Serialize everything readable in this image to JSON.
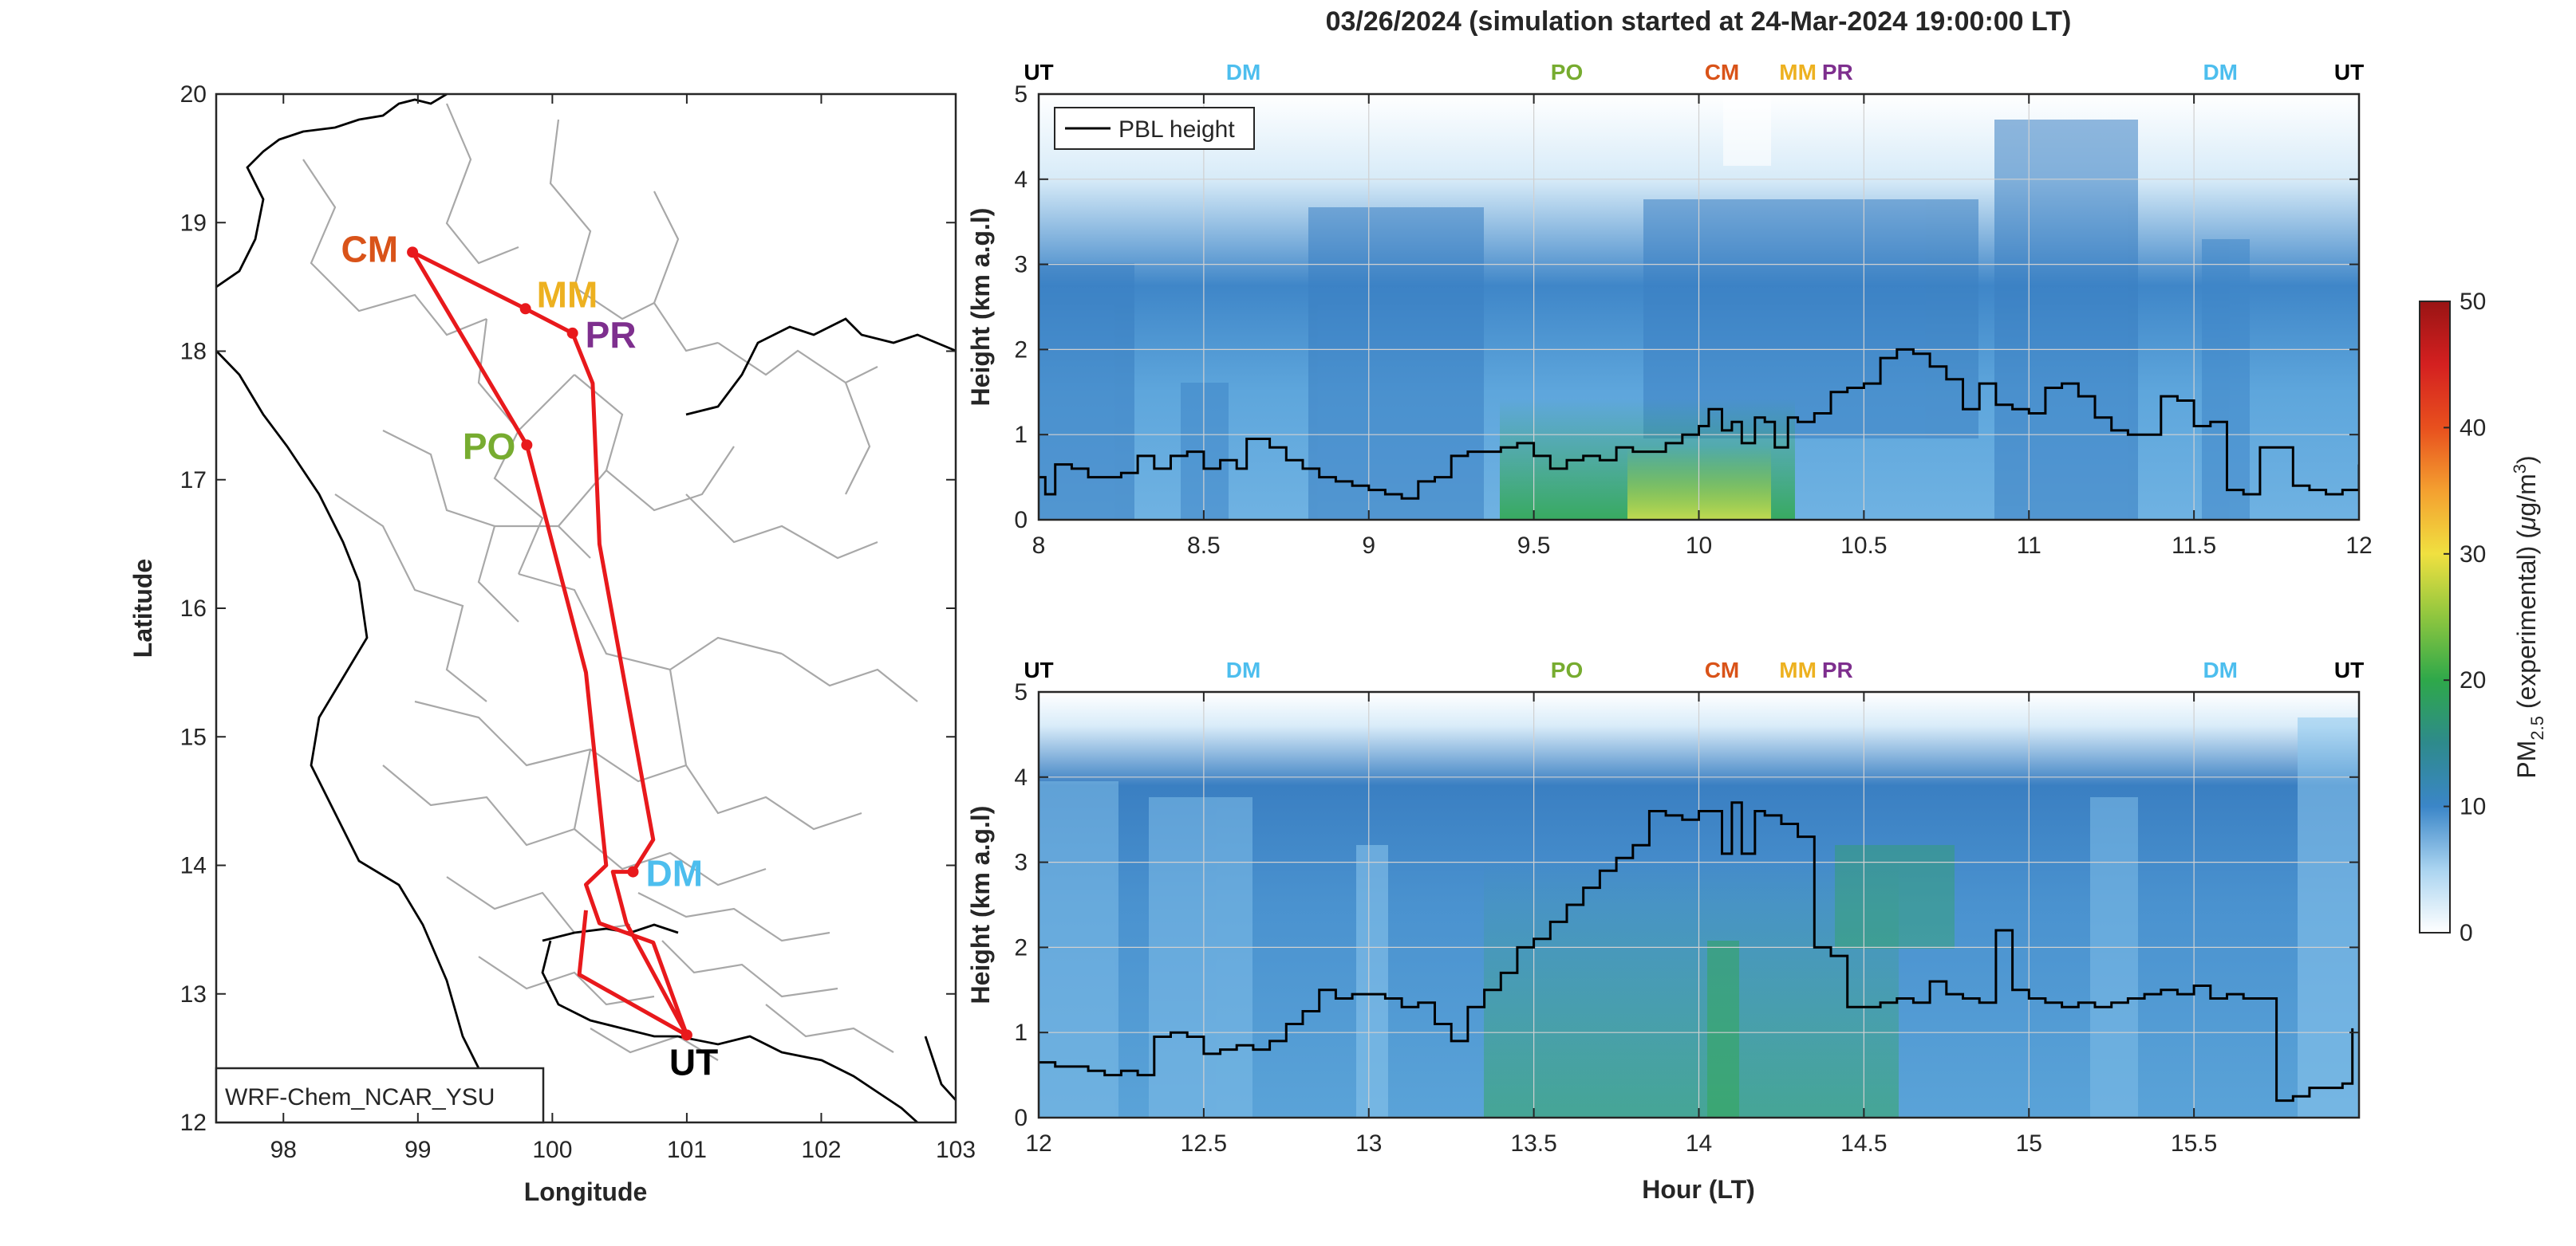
{
  "figure": {
    "title": "03/26/2024 (simulation started at 24-Mar-2024 19:00:00 LT)"
  },
  "colors": {
    "route": "#e8191c",
    "pbl": "#000000",
    "CM": "#d95319",
    "MM": "#edb120",
    "PR": "#7e2f8e",
    "PO": "#77ac30",
    "DM": "#4dbeee",
    "UT": "#000000",
    "boundary": "#9e9e9e",
    "coast": "#000000"
  },
  "map": {
    "xlabel": "Longitude",
    "ylabel": "Latitude",
    "xlim": [
      97.5,
      103
    ],
    "ylim": [
      12,
      20
    ],
    "xticks": [
      "98",
      "99",
      "100",
      "101",
      "102",
      "103"
    ],
    "yticks": [
      "12",
      "13",
      "14",
      "15",
      "16",
      "17",
      "18",
      "19",
      "20"
    ],
    "model_label": "WRF-Chem_NCAR_YSU",
    "stations": [
      {
        "code": "CM",
        "lon": 98.96,
        "lat": 18.77
      },
      {
        "code": "MM",
        "lon": 99.8,
        "lat": 18.33
      },
      {
        "code": "PR",
        "lon": 100.15,
        "lat": 18.14
      },
      {
        "code": "PO",
        "lon": 99.81,
        "lat": 17.27
      },
      {
        "code": "DM",
        "lon": 100.6,
        "lat": 13.95
      },
      {
        "code": "UT",
        "lon": 101.0,
        "lat": 12.68
      }
    ],
    "route_lonlat": [
      [
        101.0,
        12.68
      ],
      [
        100.55,
        13.55
      ],
      [
        100.45,
        13.95
      ],
      [
        100.6,
        13.95
      ],
      [
        100.75,
        14.2
      ],
      [
        100.35,
        16.5
      ],
      [
        100.3,
        17.75
      ],
      [
        100.15,
        18.14
      ],
      [
        99.8,
        18.33
      ],
      [
        98.96,
        18.77
      ],
      [
        99.81,
        17.27
      ],
      [
        100.25,
        15.5
      ],
      [
        100.4,
        14.0
      ],
      [
        100.25,
        13.85
      ],
      [
        100.35,
        13.55
      ],
      [
        100.75,
        13.4
      ],
      [
        101.0,
        12.68
      ],
      [
        100.2,
        13.15
      ],
      [
        100.25,
        13.65
      ]
    ]
  },
  "panel_top": {
    "ylabel": "Height (km a.g.l)",
    "xlim": [
      8,
      12
    ],
    "ylim": [
      0,
      5
    ],
    "xticks": [
      "8",
      "8.5",
      "9",
      "9.5",
      "10",
      "10.5",
      "11",
      "11.5",
      "12"
    ],
    "yticks": [
      "0",
      "1",
      "2",
      "3",
      "4",
      "5"
    ],
    "station_marks": [
      {
        "code": "UT",
        "hour": 8.0
      },
      {
        "code": "DM",
        "hour": 8.62
      },
      {
        "code": "PO",
        "hour": 9.6
      },
      {
        "code": "CM",
        "hour": 10.07
      },
      {
        "code": "MM",
        "hour": 10.3
      },
      {
        "code": "PR",
        "hour": 10.42
      },
      {
        "code": "DM",
        "hour": 11.58
      },
      {
        "code": "UT",
        "hour": 11.97
      }
    ],
    "legend": "PBL height"
  },
  "panel_bottom": {
    "ylabel": "Height (km a.g.l)",
    "xlabel": "Hour (LT)",
    "xlim": [
      12,
      16
    ],
    "ylim": [
      0,
      5
    ],
    "xticks": [
      "12",
      "12.5",
      "13",
      "13.5",
      "14",
      "14.5",
      "15",
      "15.5"
    ],
    "yticks": [
      "0",
      "1",
      "2",
      "3",
      "4",
      "5"
    ],
    "station_marks": [
      {
        "code": "UT",
        "hour": 12.0
      },
      {
        "code": "DM",
        "hour": 12.62
      },
      {
        "code": "PO",
        "hour": 13.6
      },
      {
        "code": "CM",
        "hour": 14.07
      },
      {
        "code": "MM",
        "hour": 14.3
      },
      {
        "code": "PR",
        "hour": 14.42
      },
      {
        "code": "DM",
        "hour": 15.58
      },
      {
        "code": "UT",
        "hour": 15.97
      }
    ]
  },
  "colorbar": {
    "label": "PM2.5 (experimental) (μg/m3)",
    "label_main": "PM",
    "label_sub": "2.5",
    "label_mid": " (experimental) (",
    "label_mu": "μ",
    "label_unit": "g/m",
    "label_sup": "3",
    "label_end": ")",
    "range": [
      0,
      50
    ],
    "ticks": [
      "0",
      "10",
      "20",
      "30",
      "40",
      "50"
    ]
  },
  "chart_data": [
    {
      "type": "line",
      "title": "03/26/2024 (simulation started at 24-Mar-2024 19:00:00 LT)",
      "xlabel": "",
      "ylabel": "Height (km a.g.l)",
      "xlim": [
        8,
        12
      ],
      "ylim": [
        0,
        5
      ],
      "series": [
        {
          "name": "PBL height",
          "x": [
            8.0,
            8.02,
            8.05,
            8.1,
            8.15,
            8.2,
            8.25,
            8.3,
            8.35,
            8.4,
            8.45,
            8.5,
            8.55,
            8.6,
            8.63,
            8.7,
            8.75,
            8.8,
            8.85,
            8.9,
            8.95,
            9.0,
            9.05,
            9.1,
            9.15,
            9.2,
            9.25,
            9.3,
            9.35,
            9.4,
            9.45,
            9.5,
            9.55,
            9.6,
            9.65,
            9.7,
            9.75,
            9.8,
            9.85,
            9.9,
            9.95,
            10.0,
            10.03,
            10.07,
            10.1,
            10.13,
            10.17,
            10.2,
            10.23,
            10.27,
            10.3,
            10.35,
            10.4,
            10.45,
            10.5,
            10.55,
            10.6,
            10.65,
            10.7,
            10.75,
            10.8,
            10.85,
            10.9,
            10.95,
            11.0,
            11.05,
            11.1,
            11.15,
            11.2,
            11.25,
            11.3,
            11.35,
            11.4,
            11.45,
            11.5,
            11.55,
            11.6,
            11.65,
            11.7,
            11.75,
            11.8,
            11.85,
            11.9,
            11.95,
            12.0
          ],
          "y": [
            0.5,
            0.3,
            0.65,
            0.6,
            0.5,
            0.5,
            0.55,
            0.75,
            0.6,
            0.75,
            0.8,
            0.6,
            0.7,
            0.6,
            0.95,
            0.85,
            0.7,
            0.6,
            0.5,
            0.45,
            0.4,
            0.35,
            0.3,
            0.25,
            0.45,
            0.5,
            0.75,
            0.8,
            0.8,
            0.85,
            0.9,
            0.75,
            0.6,
            0.7,
            0.75,
            0.7,
            0.85,
            0.8,
            0.8,
            0.9,
            1.0,
            1.1,
            1.3,
            1.05,
            1.15,
            0.9,
            1.2,
            1.15,
            0.85,
            1.2,
            1.15,
            1.25,
            1.5,
            1.55,
            1.6,
            1.9,
            2.0,
            1.95,
            1.8,
            1.65,
            1.3,
            1.6,
            1.35,
            1.3,
            1.25,
            1.55,
            1.6,
            1.45,
            1.2,
            1.05,
            1.0,
            1.0,
            1.45,
            1.4,
            1.1,
            1.15,
            0.35,
            0.3,
            0.85,
            0.85,
            0.4,
            0.35,
            0.3,
            0.35,
            0.65
          ]
        }
      ]
    },
    {
      "type": "line",
      "xlabel": "Hour (LT)",
      "ylabel": "Height (km a.g.l)",
      "xlim": [
        12,
        16
      ],
      "ylim": [
        0,
        5
      ],
      "series": [
        {
          "name": "PBL height",
          "x": [
            12.0,
            12.05,
            12.1,
            12.15,
            12.2,
            12.25,
            12.3,
            12.35,
            12.4,
            12.45,
            12.5,
            12.55,
            12.6,
            12.65,
            12.7,
            12.75,
            12.8,
            12.85,
            12.9,
            12.95,
            13.0,
            13.05,
            13.1,
            13.15,
            13.2,
            13.25,
            13.3,
            13.35,
            13.4,
            13.45,
            13.5,
            13.55,
            13.6,
            13.65,
            13.7,
            13.75,
            13.8,
            13.85,
            13.9,
            13.95,
            14.0,
            14.03,
            14.07,
            14.1,
            14.13,
            14.17,
            14.2,
            14.25,
            14.3,
            14.35,
            14.4,
            14.45,
            14.5,
            14.55,
            14.6,
            14.65,
            14.7,
            14.75,
            14.8,
            14.85,
            14.9,
            14.95,
            15.0,
            15.05,
            15.1,
            15.15,
            15.2,
            15.25,
            15.3,
            15.35,
            15.4,
            15.45,
            15.5,
            15.55,
            15.6,
            15.65,
            15.7,
            15.75,
            15.8,
            15.85,
            15.9,
            15.95,
            15.98
          ],
          "y": [
            0.65,
            0.6,
            0.6,
            0.55,
            0.5,
            0.55,
            0.5,
            0.95,
            1.0,
            0.95,
            0.75,
            0.8,
            0.85,
            0.8,
            0.9,
            1.1,
            1.25,
            1.5,
            1.4,
            1.45,
            1.45,
            1.4,
            1.3,
            1.35,
            1.1,
            0.9,
            1.3,
            1.5,
            1.7,
            2.0,
            2.1,
            2.3,
            2.5,
            2.7,
            2.9,
            3.05,
            3.2,
            3.6,
            3.55,
            3.5,
            3.6,
            3.6,
            3.1,
            3.7,
            3.1,
            3.6,
            3.55,
            3.45,
            3.3,
            2.0,
            1.9,
            1.3,
            1.3,
            1.35,
            1.4,
            1.35,
            1.6,
            1.45,
            1.4,
            1.35,
            2.2,
            1.5,
            1.4,
            1.35,
            1.3,
            1.35,
            1.3,
            1.35,
            1.4,
            1.45,
            1.5,
            1.45,
            1.55,
            1.4,
            1.45,
            1.4,
            1.4,
            0.2,
            0.25,
            0.35,
            0.35,
            0.4,
            1.05
          ]
        }
      ]
    }
  ]
}
